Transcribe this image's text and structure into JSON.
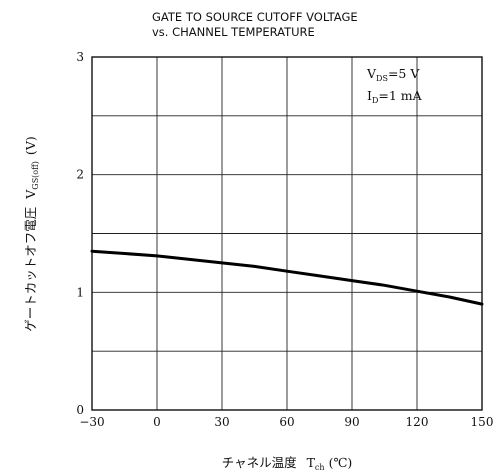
{
  "chart_data": {
    "type": "line",
    "title": "GATE TO SOURCE CUTOFF VOLTAGE",
    "subtitle": "vs. CHANNEL TEMPERATURE",
    "xlabel": {
      "main": "チャネル温度",
      "symbol": "T",
      "subscript": "ch",
      "unit": "(℃)"
    },
    "ylabel": {
      "main": "ゲートカットオフ電圧",
      "symbol": "V",
      "subscript": "GS(off)",
      "unit": "(V)"
    },
    "xlim": [
      -30,
      150
    ],
    "ylim": [
      0,
      3
    ],
    "x_ticks": [
      -30,
      0,
      30,
      60,
      90,
      120,
      150
    ],
    "y_ticks": [
      0,
      1,
      2,
      3
    ],
    "x_tick_labels": [
      "−30",
      "0",
      "30",
      "60",
      "90",
      "120",
      "150"
    ],
    "y_tick_labels": [
      "0",
      "1",
      "2",
      "3"
    ],
    "grid": true,
    "series": [
      {
        "x": [
          -30,
          -15,
          0,
          15,
          30,
          45,
          60,
          75,
          90,
          105,
          120,
          135,
          150
        ],
        "values": [
          1.35,
          1.33,
          1.31,
          1.28,
          1.25,
          1.22,
          1.18,
          1.14,
          1.1,
          1.06,
          1.01,
          0.96,
          0.9
        ],
        "color": "#000000"
      }
    ],
    "annotations": {
      "line1": {
        "symbol": "V",
        "subscript": "DS",
        "value": "=5 V"
      },
      "line2": {
        "symbol": "I",
        "subscript": "D",
        "value": "=1 mA"
      }
    }
  }
}
